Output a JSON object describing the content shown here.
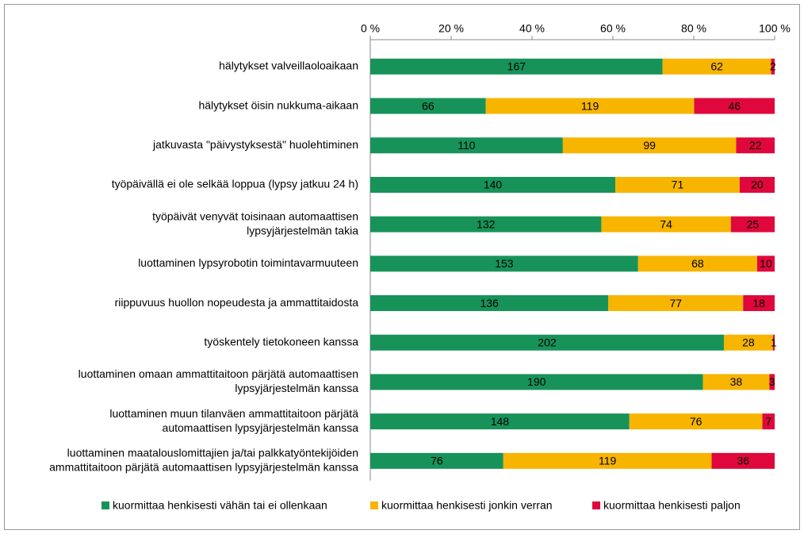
{
  "chart_data": {
    "type": "bar",
    "orientation": "horizontal",
    "stacking": "percent",
    "categories": [
      [
        "hälytykset valveillaoloaikaan"
      ],
      [
        "hälytykset öisin nukkuma-aikaan"
      ],
      [
        "jatkuvasta \"päivystyksestä\" huolehtiminen"
      ],
      [
        "työpäivällä ei ole selkää loppua (lypsy jatkuu 24 h)"
      ],
      [
        "työpäivät venyvät toisinaan automaattisen",
        "lypsyjärjestelmän takia"
      ],
      [
        "luottaminen lypsyrobotin toimintavarmuuteen"
      ],
      [
        "riippuvuus huollon nopeudesta ja ammattitaidosta"
      ],
      [
        "työskentely tietokoneen kanssa"
      ],
      [
        "luottaminen omaan ammattitaitoon pärjätä automaattisen",
        "lypsyjärjestelmän kanssa"
      ],
      [
        "luottaminen muun tilanväen ammattitaitoon pärjätä",
        "automaattisen lypsyjärjestelmän kanssa"
      ],
      [
        "luottaminen maatalouslomittajien ja/tai palkkatyöntekijöiden",
        "ammattitaitoon pärjätä automaattisen lypsyjärjestelmän kanssa"
      ]
    ],
    "series": [
      {
        "name": "kuormittaa henkisesti vähän tai ei ollenkaan",
        "color": "#17935a",
        "values": [
          167,
          66,
          110,
          140,
          132,
          153,
          136,
          202,
          190,
          148,
          76
        ]
      },
      {
        "name": "kuormittaa henkisesti jonkin verran",
        "color": "#f7b500",
        "values": [
          62,
          119,
          99,
          71,
          74,
          68,
          77,
          28,
          38,
          76,
          119
        ]
      },
      {
        "name": "kuormittaa henkisesti paljon",
        "color": "#e0073c",
        "values": [
          2,
          46,
          22,
          20,
          25,
          10,
          18,
          1,
          3,
          7,
          36
        ]
      }
    ],
    "xlim": [
      0,
      100
    ],
    "xticks": [
      {
        "value": 0,
        "label": "0 %"
      },
      {
        "value": 20,
        "label": "20 %"
      },
      {
        "value": 40,
        "label": "40 %"
      },
      {
        "value": 60,
        "label": "60 %"
      },
      {
        "value": 80,
        "label": "80 %"
      },
      {
        "value": 100,
        "label": "100 %"
      }
    ],
    "legend": "bottom"
  }
}
